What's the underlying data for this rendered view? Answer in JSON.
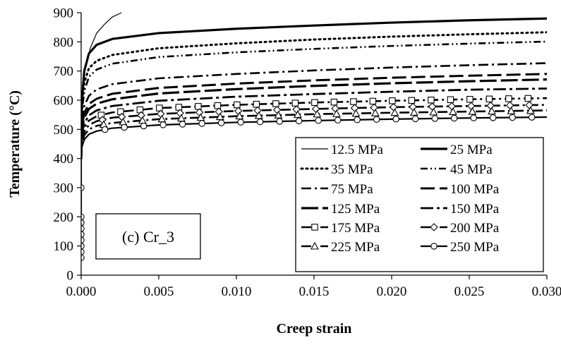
{
  "chart_data": {
    "type": "line",
    "title": "",
    "xlabel": "Creep strain",
    "ylabel": "Temperature (°C)",
    "xlim": [
      0,
      0.03
    ],
    "ylim": [
      0,
      900
    ],
    "xticks": [
      "0.000",
      "0.005",
      "0.010",
      "0.015",
      "0.020",
      "0.025",
      "0.030"
    ],
    "xtick_values": [
      0,
      0.005,
      0.01,
      0.015,
      0.02,
      0.025,
      0.03
    ],
    "yticks": [
      "0",
      "100",
      "200",
      "300",
      "400",
      "500",
      "600",
      "700",
      "800",
      "900"
    ],
    "ytick_values": [
      0,
      100,
      200,
      300,
      400,
      500,
      600,
      700,
      800,
      900
    ],
    "grid": false,
    "legend_position": "bottom-right",
    "annotation": "(c) Cr_3",
    "series": [
      {
        "name": "12.5 MPa",
        "style": "thin-solid",
        "marker": "none",
        "points": [
          [
            0,
            400
          ],
          [
            1e-05,
            560
          ],
          [
            5e-05,
            620
          ],
          [
            0.0001,
            660
          ],
          [
            0.0003,
            720
          ],
          [
            0.0006,
            780
          ],
          [
            0.001,
            830
          ],
          [
            0.0015,
            860
          ],
          [
            0.002,
            885
          ],
          [
            0.0026,
            900
          ]
        ]
      },
      {
        "name": "25 MPa",
        "style": "thick-solid",
        "marker": "none",
        "points": [
          [
            0,
            400
          ],
          [
            5e-05,
            600
          ],
          [
            0.0002,
            700
          ],
          [
            0.0005,
            760
          ],
          [
            0.001,
            790
          ],
          [
            0.002,
            810
          ],
          [
            0.005,
            830
          ],
          [
            0.01,
            845
          ],
          [
            0.015,
            856
          ],
          [
            0.02,
            866
          ],
          [
            0.025,
            874
          ],
          [
            0.03,
            880
          ]
        ]
      },
      {
        "name": "35 MPa",
        "style": "dotted",
        "marker": "none",
        "points": [
          [
            0,
            400
          ],
          [
            5e-05,
            580
          ],
          [
            0.0002,
            660
          ],
          [
            0.0005,
            710
          ],
          [
            0.001,
            735
          ],
          [
            0.002,
            755
          ],
          [
            0.005,
            778
          ],
          [
            0.01,
            795
          ],
          [
            0.015,
            808
          ],
          [
            0.02,
            818
          ],
          [
            0.025,
            826
          ],
          [
            0.03,
            833
          ]
        ]
      },
      {
        "name": "45 MPa",
        "style": "dash-dot-dot",
        "marker": "none",
        "points": [
          [
            0,
            400
          ],
          [
            5e-05,
            560
          ],
          [
            0.0002,
            630
          ],
          [
            0.0005,
            680
          ],
          [
            0.001,
            705
          ],
          [
            0.002,
            725
          ],
          [
            0.005,
            748
          ],
          [
            0.01,
            764
          ],
          [
            0.015,
            776
          ],
          [
            0.02,
            786
          ],
          [
            0.025,
            794
          ],
          [
            0.03,
            801
          ]
        ]
      },
      {
        "name": "75 MPa",
        "style": "dash-dot",
        "marker": "none",
        "points": [
          [
            0,
            400
          ],
          [
            5e-05,
            530
          ],
          [
            0.0002,
            580
          ],
          [
            0.0005,
            615
          ],
          [
            0.001,
            637
          ],
          [
            0.002,
            655
          ],
          [
            0.005,
            675
          ],
          [
            0.01,
            690
          ],
          [
            0.015,
            702
          ],
          [
            0.02,
            712
          ],
          [
            0.025,
            720
          ],
          [
            0.03,
            727
          ]
        ]
      },
      {
        "name": "100 MPa",
        "style": "long-dash",
        "marker": "none",
        "points": [
          [
            0,
            400
          ],
          [
            5e-05,
            510
          ],
          [
            0.0002,
            555
          ],
          [
            0.0005,
            587
          ],
          [
            0.001,
            605
          ],
          [
            0.002,
            622
          ],
          [
            0.005,
            642
          ],
          [
            0.01,
            657
          ],
          [
            0.015,
            668
          ],
          [
            0.02,
            677
          ],
          [
            0.025,
            684
          ],
          [
            0.03,
            690
          ]
        ]
      },
      {
        "name": "125 MPa",
        "style": "long-dash-thick",
        "marker": "none",
        "points": [
          [
            0,
            400
          ],
          [
            5e-05,
            500
          ],
          [
            0.0002,
            540
          ],
          [
            0.0005,
            570
          ],
          [
            0.001,
            588
          ],
          [
            0.002,
            603
          ],
          [
            0.005,
            623
          ],
          [
            0.01,
            638
          ],
          [
            0.015,
            649
          ],
          [
            0.02,
            658
          ],
          [
            0.025,
            665
          ],
          [
            0.03,
            671
          ]
        ]
      },
      {
        "name": "150 MPa",
        "style": "dash-dot-long",
        "marker": "none",
        "points": [
          [
            0,
            400
          ],
          [
            5e-05,
            485
          ],
          [
            0.0002,
            520
          ],
          [
            0.0005,
            548
          ],
          [
            0.001,
            565
          ],
          [
            0.002,
            580
          ],
          [
            0.005,
            598
          ],
          [
            0.01,
            612
          ],
          [
            0.015,
            621
          ],
          [
            0.02,
            629
          ],
          [
            0.025,
            636
          ],
          [
            0.03,
            640
          ]
        ]
      },
      {
        "name": "175 MPa",
        "style": "dash-dot",
        "marker": "square",
        "points": [
          [
            0,
            400
          ],
          [
            5e-05,
            470
          ],
          [
            0.0002,
            505
          ],
          [
            0.0005,
            530
          ],
          [
            0.001,
            545
          ],
          [
            0.002,
            558
          ],
          [
            0.005,
            573
          ],
          [
            0.01,
            584
          ],
          [
            0.015,
            592
          ],
          [
            0.02,
            598
          ],
          [
            0.025,
            603
          ],
          [
            0.03,
            607
          ]
        ]
      },
      {
        "name": "200 MPa",
        "style": "dash-dot",
        "marker": "diamond",
        "points": [
          [
            0,
            400
          ],
          [
            5e-05,
            460
          ],
          [
            0.0002,
            492
          ],
          [
            0.0005,
            515
          ],
          [
            0.001,
            528
          ],
          [
            0.002,
            540
          ],
          [
            0.005,
            553
          ],
          [
            0.01,
            563
          ],
          [
            0.015,
            570
          ],
          [
            0.02,
            576
          ],
          [
            0.025,
            580
          ],
          [
            0.03,
            584
          ]
        ]
      },
      {
        "name": "225 MPa",
        "style": "dash-dot",
        "marker": "triangle",
        "points": [
          [
            0,
            400
          ],
          [
            5e-05,
            450
          ],
          [
            0.0002,
            480
          ],
          [
            0.0005,
            500
          ],
          [
            0.001,
            512
          ],
          [
            0.002,
            522
          ],
          [
            0.005,
            535
          ],
          [
            0.01,
            545
          ],
          [
            0.015,
            552
          ],
          [
            0.02,
            557
          ],
          [
            0.025,
            561
          ],
          [
            0.03,
            565
          ]
        ]
      },
      {
        "name": "250 MPa",
        "style": "solid",
        "marker": "circle",
        "points": [
          [
            0,
            60
          ],
          [
            0,
            80
          ],
          [
            0,
            100
          ],
          [
            0,
            120
          ],
          [
            0,
            140
          ],
          [
            0,
            160
          ],
          [
            0,
            180
          ],
          [
            0,
            200
          ],
          [
            0,
            300
          ],
          [
            0,
            400
          ],
          [
            5e-05,
            440
          ],
          [
            0.0002,
            465
          ],
          [
            0.0005,
            483
          ],
          [
            0.001,
            494
          ],
          [
            0.002,
            504
          ],
          [
            0.005,
            515
          ],
          [
            0.01,
            524
          ],
          [
            0.015,
            530
          ],
          [
            0.02,
            535
          ],
          [
            0.025,
            539
          ],
          [
            0.03,
            542
          ]
        ]
      }
    ]
  }
}
